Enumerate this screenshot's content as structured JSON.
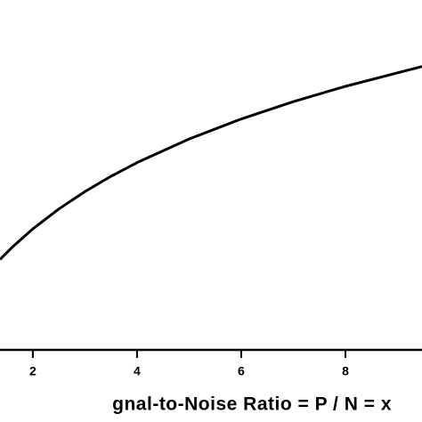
{
  "chart_data": {
    "type": "line",
    "x_label": "gnal-to-Noise  Ratio  =  P / N  =  x",
    "x": [
      1.37,
      1.6,
      2,
      2.5,
      3,
      3.5,
      4,
      5,
      6,
      7,
      8,
      9,
      9.47
    ],
    "series": [
      {
        "color": "#000000",
        "values": [
          1.245,
          1.379,
          1.585,
          1.807,
          2.0,
          2.17,
          2.322,
          2.585,
          2.807,
          3.0,
          3.17,
          3.32,
          3.39
        ]
      }
    ],
    "xlim": [
      1.37,
      9.47
    ],
    "ylim": [
      0.24,
      4.13
    ],
    "xticks": [
      2,
      4,
      6,
      8
    ]
  }
}
